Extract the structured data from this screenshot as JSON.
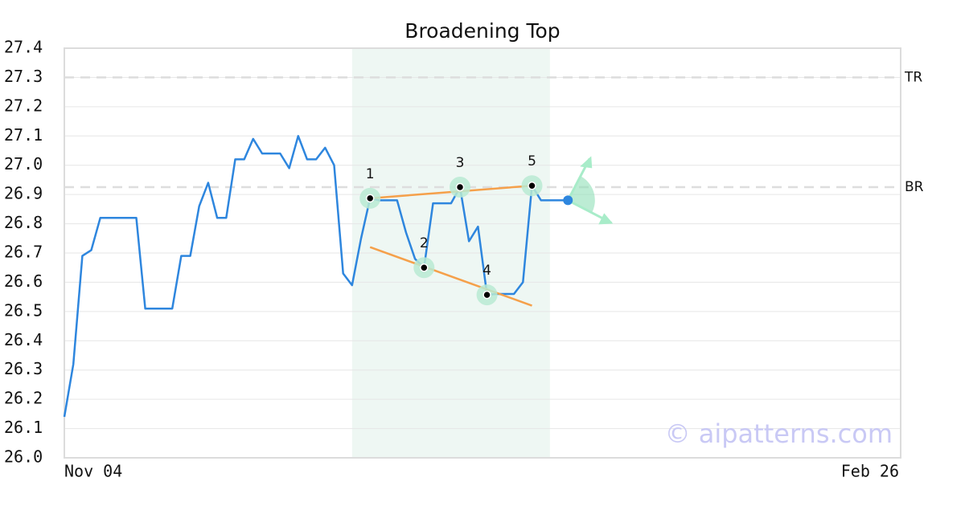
{
  "chart_data": {
    "type": "line",
    "title": "Broadening Top",
    "categories": [
      "Nov 04",
      null,
      null,
      null,
      null,
      null,
      null,
      null,
      null,
      null,
      null,
      null,
      null,
      null,
      null,
      null,
      null,
      null,
      null,
      null,
      null,
      null,
      null,
      null,
      null,
      null,
      null,
      null,
      null,
      null,
      null,
      null,
      null,
      null,
      null,
      null,
      null,
      null,
      null,
      null,
      null,
      null,
      null,
      null,
      null,
      null,
      null,
      null,
      null,
      null,
      null,
      null,
      null,
      null,
      null,
      null,
      null,
      null,
      null,
      null,
      null,
      null,
      null,
      null,
      null,
      null,
      null,
      null,
      null,
      null,
      null,
      null,
      null,
      null,
      null,
      null,
      null,
      null,
      null,
      null,
      null,
      null,
      null,
      null,
      null,
      null,
      null,
      null,
      null,
      null,
      null,
      null,
      null,
      "Feb 26"
    ],
    "values": [
      26.14,
      26.32,
      26.69,
      26.71,
      26.82,
      26.82,
      26.82,
      26.82,
      26.82,
      26.51,
      26.51,
      26.51,
      26.51,
      26.69,
      26.69,
      26.86,
      26.94,
      26.82,
      26.82,
      27.02,
      27.02,
      27.09,
      27.04,
      27.04,
      27.04,
      26.99,
      27.1,
      27.02,
      27.02,
      27.06,
      27.0,
      26.63,
      26.59,
      26.75,
      26.887,
      26.88,
      26.88,
      26.88,
      26.77,
      26.68,
      26.65,
      26.87,
      26.87,
      26.87,
      26.925,
      26.74,
      26.79,
      26.557,
      26.56,
      26.56,
      26.56,
      26.6,
      26.93,
      26.88,
      26.88,
      26.88,
      26.88,
      null,
      null,
      null,
      null,
      null,
      null,
      null,
      null,
      null,
      null,
      null,
      null,
      null,
      null,
      null,
      null,
      null,
      null,
      null,
      null,
      null,
      null,
      null,
      null,
      null,
      null,
      null,
      null,
      null,
      null,
      null,
      null,
      null,
      null,
      null,
      null,
      null
    ],
    "color": "#2e86de",
    "ylim": [
      26.0,
      27.4
    ],
    "yticks": [
      {
        "value": 26.0,
        "label": "26.0"
      },
      26.1,
      26.2,
      26.3,
      26.4,
      26.5,
      26.6,
      26.7,
      26.8,
      26.9,
      {
        "value": 27.0,
        "label": "27.0"
      },
      27.1,
      27.2,
      27.3,
      27.4
    ],
    "grid": true,
    "highlight": {
      "start": 32,
      "end": 54,
      "color": "#eef7f3"
    },
    "reference_lines": [
      {
        "label": "TR",
        "value": 27.3
      },
      {
        "label": "BR",
        "value": 26.925
      }
    ],
    "pattern_points": [
      {
        "label": "1",
        "index": 34,
        "value": 26.887
      },
      {
        "label": "2",
        "index": 40,
        "value": 26.65
      },
      {
        "label": "3",
        "index": 44,
        "value": 26.925
      },
      {
        "label": "4",
        "index": 47,
        "value": 26.557
      },
      {
        "label": "5",
        "index": 52,
        "value": 26.93
      }
    ],
    "trendlines": [
      {
        "color": "#f5a04a",
        "start_index": 34,
        "start_value": 26.887,
        "end_index": 52,
        "end_value": 26.93
      },
      {
        "color": "#f5a04a",
        "start_index": 34,
        "start_value": 26.72,
        "end_index": 52,
        "end_value": 26.52
      }
    ],
    "watermark": "© aipatterns.com"
  }
}
